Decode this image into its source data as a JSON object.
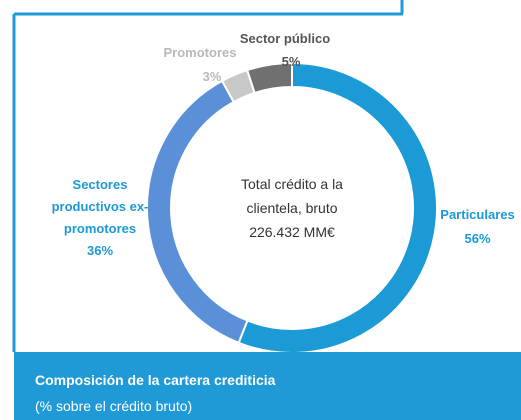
{
  "chart_data": {
    "type": "donut",
    "center_text": [
      "Total crédito a la",
      "clientela, bruto",
      "226.432 MM€"
    ],
    "categories": [
      "Particulares",
      "Sectores productivos ex-promotores",
      "Promotores",
      "Sector público"
    ],
    "values": [
      56,
      36,
      3,
      5
    ],
    "value_labels": [
      "56%",
      "36%",
      "3%",
      "5%"
    ],
    "colors": [
      "#1b9ad6",
      "#5b8fd8",
      "#c8c8c8",
      "#707070"
    ],
    "caption_title": "Composición de la cartera crediticia",
    "caption_subtitle": "(% sobre el crédito bruto)"
  }
}
